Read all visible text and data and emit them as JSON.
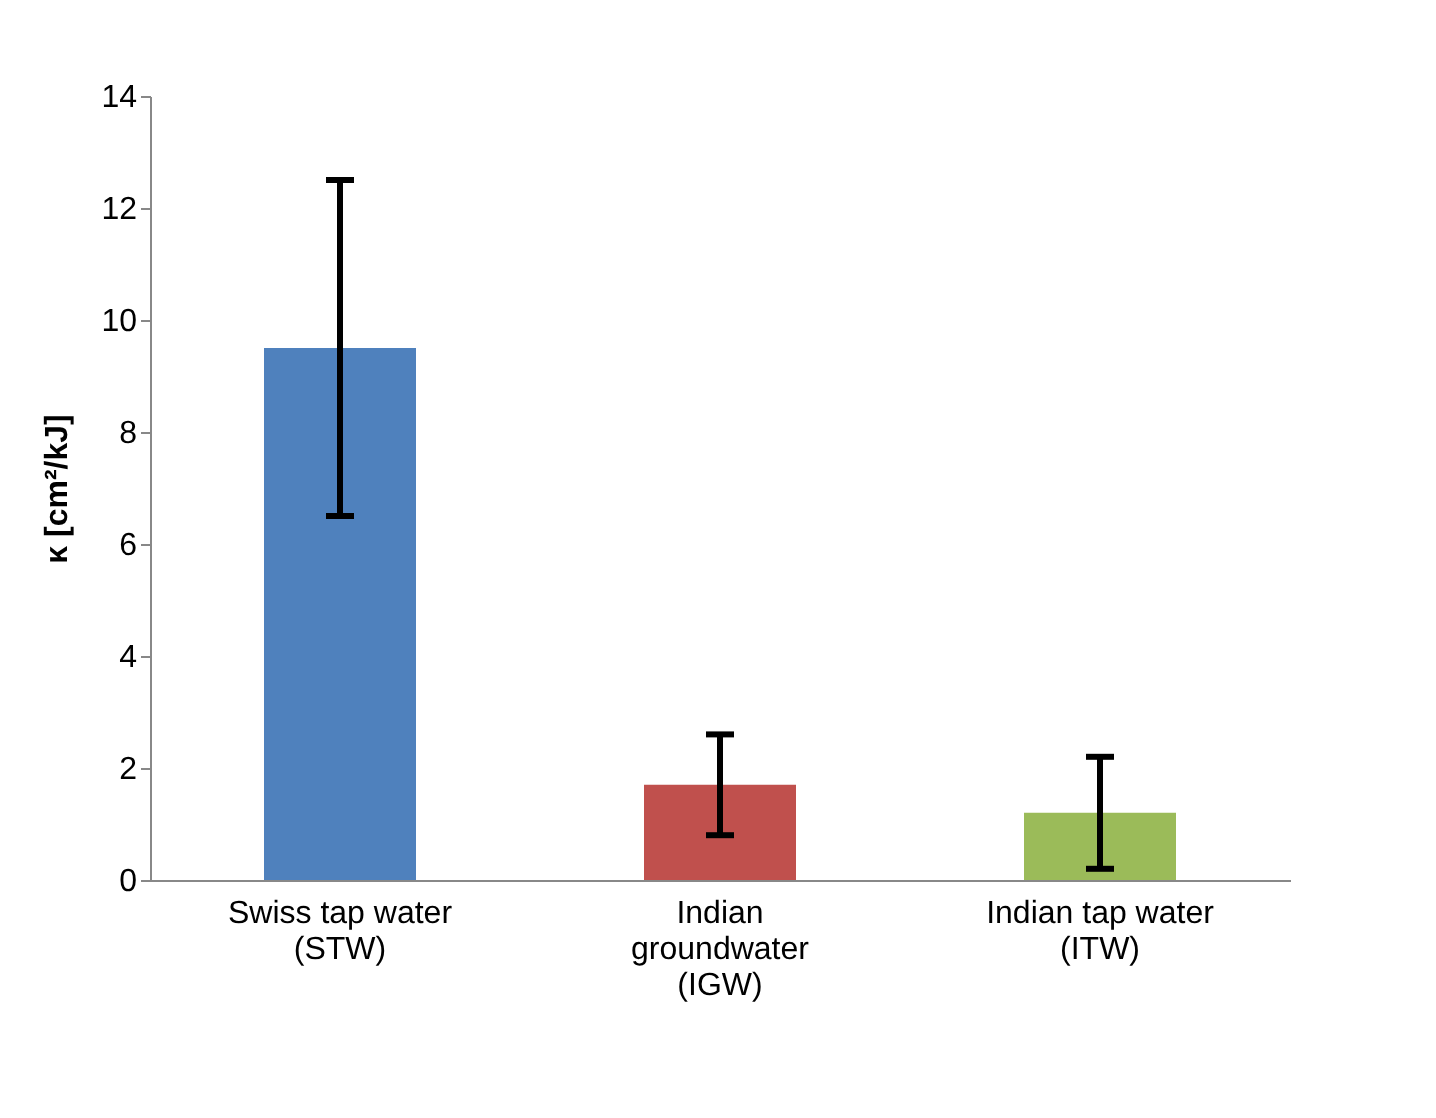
{
  "chart_data": {
    "type": "bar",
    "ylabel": "κ [cm²/kJ]",
    "categories": [
      "Swiss tap water (STW)",
      "Indian groundwater (IGW)",
      "Indian tap water (ITW)"
    ],
    "values": [
      9.5,
      1.7,
      1.2
    ],
    "colors": [
      "#4f81bd",
      "#c0504d",
      "#9bbb59"
    ],
    "errors": [
      3.0,
      0.9,
      1.0
    ],
    "ylim": [
      0,
      14
    ],
    "yticks": [
      0,
      2,
      4,
      6,
      8,
      10,
      12,
      14
    ],
    "grid": false,
    "legend": false
  }
}
